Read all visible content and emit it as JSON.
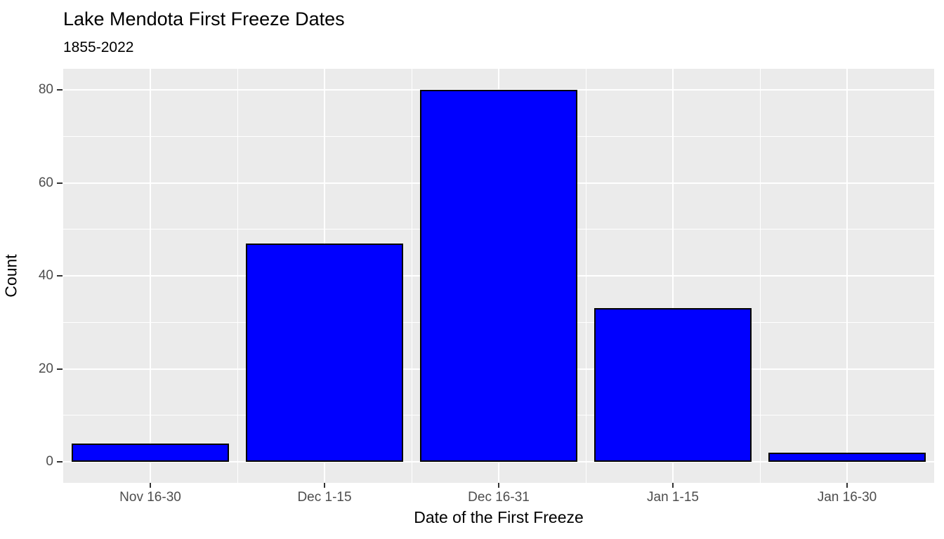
{
  "chart_data": {
    "type": "bar",
    "title": "Lake Mendota First Freeze Dates",
    "subtitle": "1855-2022",
    "xlabel": "Date of the First Freeze",
    "ylabel": "Count",
    "categories": [
      "Nov 16-30",
      "Dec 1-15",
      "Dec 16-31",
      "Jan 1-15",
      "Jan 16-30"
    ],
    "values": [
      4,
      47,
      80,
      33,
      2
    ],
    "ylim": [
      0,
      80
    ],
    "yticks": [
      0,
      20,
      40,
      60,
      80
    ],
    "grid": true,
    "legend": "none",
    "bar_color": "#0000FF",
    "bar_border_color": "#000000",
    "panel_background": "#EBEBEB",
    "gridline_color": "#FFFFFF",
    "tick_label_color": "#4D4D4D"
  }
}
